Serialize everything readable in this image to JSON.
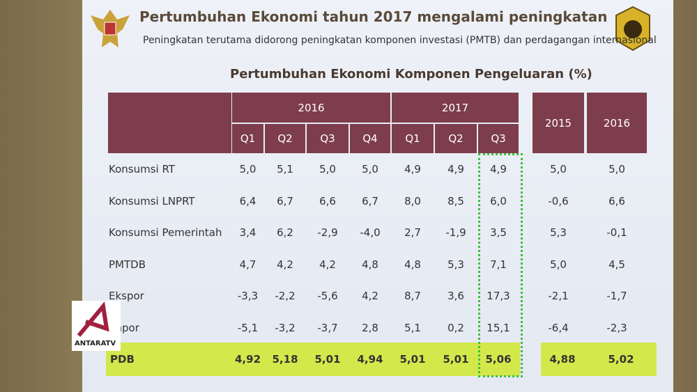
{
  "header": {
    "title": "Pertumbuhan Ekonomi tahun 2017 mengalami peningkatan",
    "subtitle": "Peningkatan terutama didorong peningkatan komponen investasi (PMTB) dan perdagangan internasional"
  },
  "table": {
    "title": "Pertumbuhan Ekonomi Komponen Pengeluaran (%)",
    "year_groups": [
      "2016",
      "2017"
    ],
    "quarters": [
      "Q1",
      "Q2",
      "Q3",
      "Q4",
      "Q1",
      "Q2",
      "Q3"
    ],
    "annual": [
      "2015",
      "2016"
    ],
    "rows": [
      {
        "label": "Konsumsi RT",
        "values": [
          "5,0",
          "5,1",
          "5,0",
          "5,0",
          "4,9",
          "4,9",
          "4,9",
          "5,0",
          "5,0"
        ]
      },
      {
        "label": "Konsumsi LNPRT",
        "values": [
          "6,4",
          "6,7",
          "6,6",
          "6,7",
          "8,0",
          "8,5",
          "6,0",
          "-0,6",
          "6,6"
        ]
      },
      {
        "label": "Konsumsi  Pemerintah",
        "values": [
          "3,4",
          "6,2",
          "-2,9",
          "-4,0",
          "2,7",
          "-1,9",
          "3,5",
          "5,3",
          "-0,1"
        ]
      },
      {
        "label": "PMTDB",
        "values": [
          "4,7",
          "4,2",
          "4,2",
          "4,8",
          "4,8",
          "5,3",
          "7,1",
          "5,0",
          "4,5"
        ]
      },
      {
        "label": "Ekspor",
        "values": [
          "-3,3",
          "-2,2",
          "-5,6",
          "4,2",
          "8,7",
          "3,6",
          "17,3",
          "-2,1",
          "-1,7"
        ]
      },
      {
        "label": "Impor",
        "values": [
          "-5,1",
          "-3,2",
          "-3,7",
          "2,8",
          "5,1",
          "0,2",
          "15,1",
          "-6,4",
          "-2,3"
        ]
      }
    ],
    "total": {
      "label": "PDB",
      "values": [
        "4,92",
        "5,18",
        "5,01",
        "4,94",
        "5,01",
        "5,01",
        "5,06",
        "4,88",
        "5,02"
      ]
    }
  },
  "watermark": {
    "text": "ANTARATV"
  }
}
